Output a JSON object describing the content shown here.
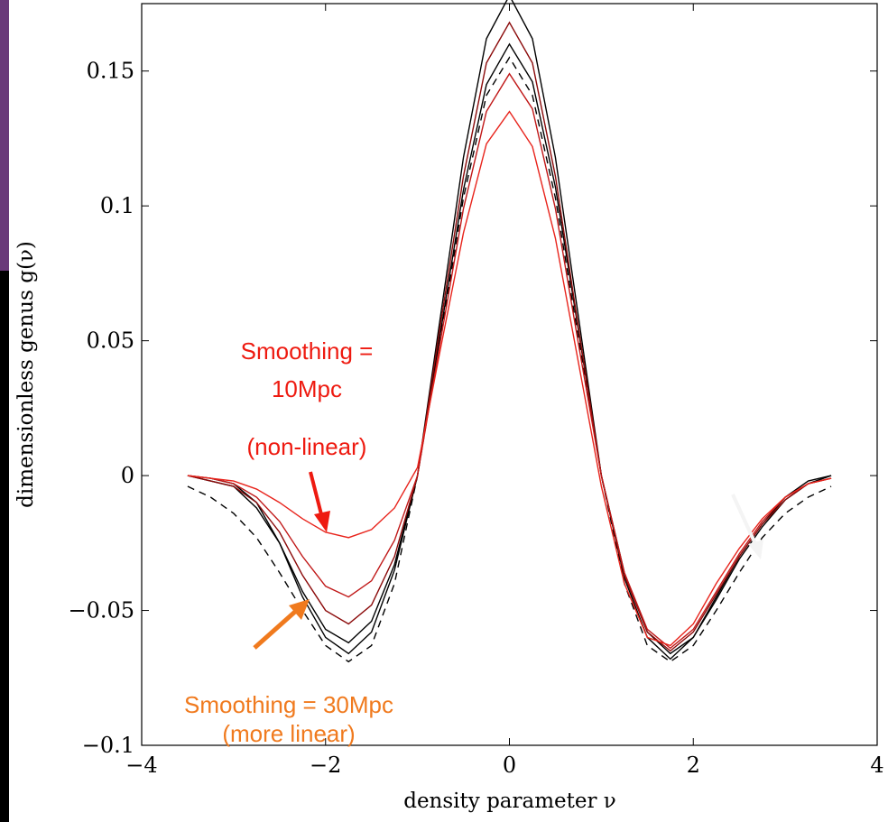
{
  "chart_data": {
    "type": "line",
    "xlabel": "density parameter ν",
    "ylabel": "dimensionless genus g(ν)",
    "x": [
      -3.5,
      -3.25,
      -3,
      -2.75,
      -2.5,
      -2.25,
      -2,
      -1.75,
      -1.5,
      -1.25,
      -1,
      -0.75,
      -0.5,
      -0.25,
      0,
      0.25,
      0.5,
      0.75,
      1,
      1.25,
      1.5,
      1.75,
      2,
      2.25,
      2.5,
      2.75,
      3,
      3.25,
      3.5
    ],
    "series": [
      {
        "color": "#000000",
        "style": "dashed",
        "values": [
          -0.004,
          -0.008,
          -0.014,
          -0.023,
          -0.036,
          -0.05,
          -0.063,
          -0.069,
          -0.063,
          -0.04,
          0,
          0.051,
          0.103,
          0.141,
          0.155,
          0.141,
          0.103,
          0.051,
          0,
          -0.04,
          -0.063,
          -0.069,
          -0.063,
          -0.05,
          -0.036,
          -0.023,
          -0.014,
          -0.008,
          -0.004
        ]
      },
      {
        "color": "#000000",
        "style": "solid",
        "values": [
          0,
          -0.001,
          -0.003,
          -0.01,
          -0.025,
          -0.045,
          -0.06,
          -0.066,
          -0.058,
          -0.035,
          0,
          0.059,
          0.118,
          0.162,
          0.178,
          0.162,
          0.118,
          0.059,
          0,
          -0.038,
          -0.06,
          -0.068,
          -0.06,
          -0.045,
          -0.03,
          -0.018,
          -0.008,
          -0.002,
          0
        ]
      },
      {
        "color": "#000000",
        "style": "solid",
        "values": [
          0,
          -0.002,
          -0.004,
          -0.012,
          -0.025,
          -0.043,
          -0.057,
          -0.062,
          -0.054,
          -0.033,
          0,
          0.053,
          0.106,
          0.145,
          0.16,
          0.146,
          0.107,
          0.054,
          0,
          -0.036,
          -0.058,
          -0.066,
          -0.06,
          -0.046,
          -0.031,
          -0.019,
          -0.009,
          -0.003,
          0
        ]
      },
      {
        "color": "#8b0a0a",
        "style": "solid",
        "values": [
          0,
          -0.002,
          -0.004,
          -0.01,
          -0.021,
          -0.037,
          -0.05,
          -0.055,
          -0.048,
          -0.03,
          0,
          0.056,
          0.111,
          0.153,
          0.168,
          0.153,
          0.111,
          0.055,
          0,
          -0.037,
          -0.058,
          -0.065,
          -0.058,
          -0.044,
          -0.03,
          -0.018,
          -0.009,
          -0.003,
          -0.001
        ]
      },
      {
        "color": "#c01818",
        "style": "solid",
        "values": [
          0,
          -0.001,
          -0.003,
          -0.008,
          -0.017,
          -0.03,
          -0.041,
          -0.045,
          -0.039,
          -0.024,
          0,
          0.05,
          0.099,
          0.135,
          0.149,
          0.136,
          0.099,
          0.049,
          0,
          -0.036,
          -0.057,
          -0.064,
          -0.057,
          -0.043,
          -0.029,
          -0.017,
          -0.008,
          -0.003,
          -0.001
        ]
      },
      {
        "color": "#e8241c",
        "style": "solid",
        "values": [
          0,
          -0.001,
          -0.002,
          -0.005,
          -0.01,
          -0.016,
          -0.021,
          -0.023,
          -0.02,
          -0.012,
          0.003,
          0.047,
          0.09,
          0.123,
          0.135,
          0.122,
          0.088,
          0.042,
          -0.004,
          -0.04,
          -0.06,
          -0.063,
          -0.055,
          -0.04,
          -0.027,
          -0.016,
          -0.008,
          -0.003,
          -0.001
        ]
      }
    ],
    "xlim": [
      -4,
      4
    ],
    "ylim": [
      -0.1,
      0.175
    ],
    "xticks": [
      {
        "value": -4,
        "label": "−4"
      },
      {
        "value": -2,
        "label": "−2"
      },
      0,
      2,
      4
    ],
    "yticks": [
      {
        "value": -0.1,
        "label": "−0.1"
      },
      {
        "value": -0.05,
        "label": "−0.05"
      },
      0,
      0.05,
      0.1,
      0.15
    ],
    "annotations": [
      {
        "lines": [
          "Smoothing =",
          "10Mpc",
          "(non-linear)"
        ],
        "color": "#ee1a10"
      },
      {
        "lines": [
          "Smoothing = 30Mpc",
          "(more linear)"
        ],
        "color": "#f07a1e"
      }
    ]
  }
}
